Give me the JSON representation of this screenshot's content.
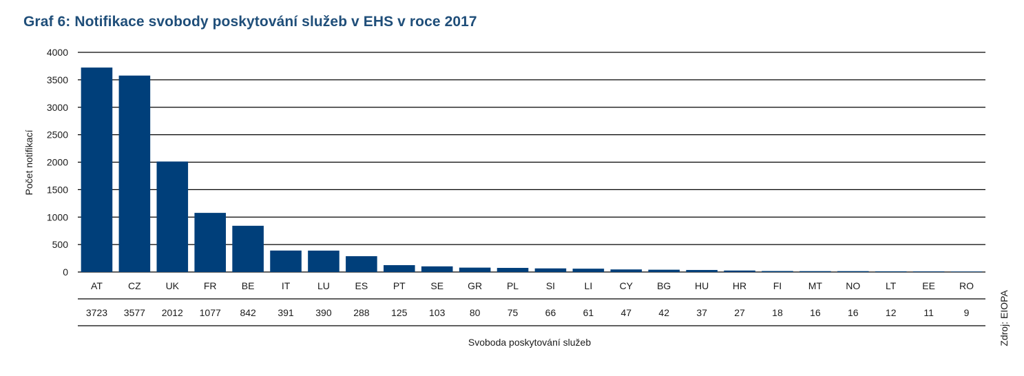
{
  "title": "Graf 6: Notifikace svobody poskytování služeb v EHS v roce 2017",
  "source": "Zdroj: EIOPA",
  "colors": {
    "bar": "#003f7a",
    "title": "#1f4e79",
    "grid": "#000000"
  },
  "chart_data": {
    "type": "bar",
    "title": "Graf 6: Notifikace svobody poskytování služeb v EHS v roce 2017",
    "xlabel": "Svoboda poskytování služeb",
    "ylabel": "Počet notifikací",
    "ylim": [
      0,
      4000
    ],
    "yticks": [
      0,
      500,
      1000,
      1500,
      2000,
      2500,
      3000,
      3500,
      4000
    ],
    "grid": true,
    "categories": [
      "AT",
      "CZ",
      "UK",
      "FR",
      "BE",
      "IT",
      "LU",
      "ES",
      "PT",
      "SE",
      "GR",
      "PL",
      "SI",
      "LI",
      "CY",
      "BG",
      "HU",
      "HR",
      "FI",
      "MT",
      "NO",
      "LT",
      "EE",
      "RO"
    ],
    "values": [
      3723,
      3577,
      2012,
      1077,
      842,
      391,
      390,
      288,
      125,
      103,
      80,
      75,
      66,
      61,
      47,
      42,
      37,
      27,
      18,
      16,
      16,
      12,
      11,
      9
    ],
    "data_table": true
  }
}
